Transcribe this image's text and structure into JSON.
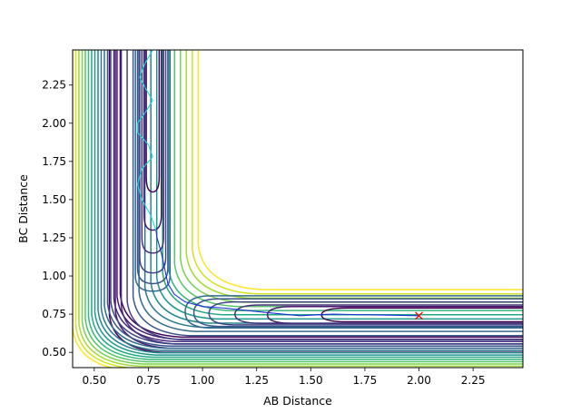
{
  "chart_data": {
    "type": "contour",
    "title": "",
    "xlabel": "AB Distance",
    "ylabel": "BC Distance",
    "xlim": [
      0.4,
      2.48
    ],
    "ylim": [
      0.4,
      2.48
    ],
    "xticks": [
      0.5,
      0.75,
      1.0,
      1.25,
      1.5,
      1.75,
      2.0,
      2.25
    ],
    "xtick_labels": [
      "0.50",
      "0.75",
      "1.00",
      "1.25",
      "1.50",
      "1.75",
      "2.00",
      "2.25"
    ],
    "yticks": [
      0.5,
      0.75,
      1.0,
      1.25,
      1.5,
      1.75,
      2.0,
      2.25
    ],
    "ytick_labels": [
      "0.50",
      "0.75",
      "1.00",
      "1.25",
      "1.50",
      "1.75",
      "2.00",
      "2.25"
    ],
    "grid": false,
    "contour_colormap": "viridis",
    "contour_levels": 16,
    "contour_colors": [
      "#440154",
      "#481a6c",
      "#472f7d",
      "#414487",
      "#39568c",
      "#31688e",
      "#2a788e",
      "#23888e",
      "#1f988b",
      "#22a884",
      "#35b779",
      "#54c568",
      "#7ad151",
      "#a5db36",
      "#d2e21b",
      "#fde725"
    ],
    "start_point": {
      "x": 2.0,
      "y": 0.74,
      "marker": "x",
      "color": "#ff0000"
    },
    "trajectory": {
      "color": "#1f2fd6",
      "points": [
        [
          2.0,
          0.74
        ],
        [
          1.8,
          0.745
        ],
        [
          1.6,
          0.75
        ],
        [
          1.45,
          0.74
        ],
        [
          1.3,
          0.76
        ],
        [
          1.2,
          0.775
        ],
        [
          1.1,
          0.79
        ],
        [
          1.0,
          0.8
        ],
        [
          0.92,
          0.83
        ],
        [
          0.87,
          0.88
        ],
        [
          0.84,
          0.95
        ],
        [
          0.825,
          1.05
        ],
        [
          0.81,
          1.15
        ],
        [
          0.79,
          1.25
        ],
        [
          0.785,
          1.3
        ]
      ]
    },
    "oscillation": {
      "color": "#17d7e8",
      "points": [
        [
          0.785,
          1.3
        ],
        [
          0.76,
          1.4
        ],
        [
          0.72,
          1.5
        ],
        [
          0.7,
          1.6
        ],
        [
          0.72,
          1.7
        ],
        [
          0.77,
          1.78
        ],
        [
          0.75,
          1.86
        ],
        [
          0.7,
          1.94
        ],
        [
          0.7,
          2.0
        ],
        [
          0.74,
          2.08
        ],
        [
          0.77,
          2.15
        ],
        [
          0.74,
          2.22
        ],
        [
          0.71,
          2.3
        ],
        [
          0.73,
          2.38
        ],
        [
          0.77,
          2.48
        ]
      ]
    }
  }
}
